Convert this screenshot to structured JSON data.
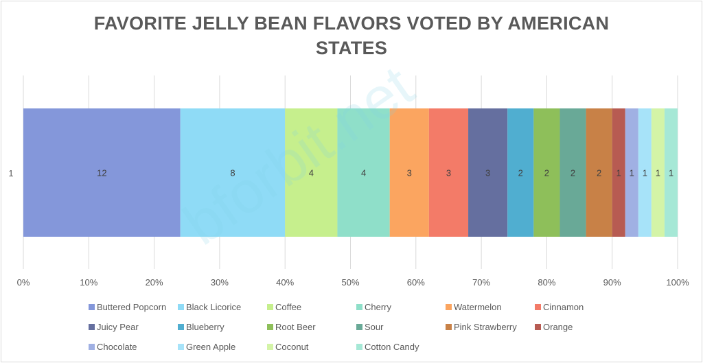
{
  "chart_data": {
    "type": "bar",
    "orientation": "horizontal-stacked-100",
    "title": "FAVORITE JELLY BEAN FLAVORS VOTED BY AMERICAN STATES",
    "categories": [
      "1"
    ],
    "x_ticks": [
      "0%",
      "10%",
      "20%",
      "30%",
      "40%",
      "50%",
      "60%",
      "70%",
      "80%",
      "90%",
      "100%"
    ],
    "xlim": [
      0,
      100
    ],
    "grid": true,
    "legend_position": "bottom",
    "series": [
      {
        "name": "Buttered Popcorn",
        "values": [
          12
        ],
        "color": "#8497da"
      },
      {
        "name": "Black Licorice",
        "values": [
          8
        ],
        "color": "#8fdbf6"
      },
      {
        "name": "Coffee",
        "values": [
          4
        ],
        "color": "#c6ef8d"
      },
      {
        "name": "Cherry",
        "values": [
          4
        ],
        "color": "#8fdfc9"
      },
      {
        "name": "Watermelon",
        "values": [
          3
        ],
        "color": "#fba560"
      },
      {
        "name": "Cinnamon",
        "values": [
          3
        ],
        "color": "#f37b68"
      },
      {
        "name": "Juicy Pear",
        "values": [
          3
        ],
        "color": "#656f9f"
      },
      {
        "name": "Blueberry",
        "values": [
          2
        ],
        "color": "#50aed0"
      },
      {
        "name": "Root Beer",
        "values": [
          2
        ],
        "color": "#8ebf5a"
      },
      {
        "name": "Sour",
        "values": [
          2
        ],
        "color": "#69a997"
      },
      {
        "name": "Pink Strawberry",
        "values": [
          2
        ],
        "color": "#c88147"
      },
      {
        "name": "Orange",
        "values": [
          1
        ],
        "color": "#b75b52"
      },
      {
        "name": "Chocolate",
        "values": [
          1
        ],
        "color": "#a0b0e3"
      },
      {
        "name": "Green Apple",
        "values": [
          1
        ],
        "color": "#a7e3f9"
      },
      {
        "name": "Coconut",
        "values": [
          1
        ],
        "color": "#d4f4a7"
      },
      {
        "name": "Cotton Candy",
        "values": [
          1
        ],
        "color": "#a6e8d6"
      }
    ],
    "watermark": "bforbit.net"
  }
}
